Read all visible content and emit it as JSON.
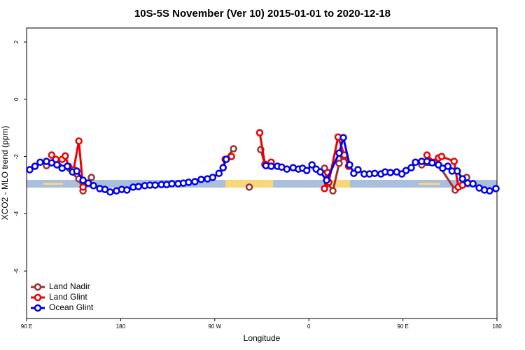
{
  "chart_data": {
    "type": "line",
    "title": "10S-5S November (Ver 10)   2015-01-01 to 2020-12-18",
    "x_label": "Longitude",
    "y_label": "XCO2 - MLO trend (ppm)",
    "xlim": [
      90,
      540
    ],
    "ylim": [
      -7.66,
      2.49
    ],
    "xticks": [
      {
        "value": 90,
        "label": "90 E"
      },
      180,
      {
        "value": 270,
        "label": "90 W"
      },
      {
        "value": 360,
        "label": "0"
      },
      {
        "value": 450,
        "label": "90 E"
      },
      {
        "value": 540,
        "label": "180"
      }
    ],
    "yticks": [
      2,
      0,
      -2,
      -4,
      -6
    ],
    "legend": "bottom-left",
    "series": [
      {
        "name": "Land Nadir",
        "color": "#993333",
        "x": [
          109,
          118,
          140,
          144,
          152,
          200,
          280,
          288,
          300,
          303,
          305,
          314,
          318,
          340,
          375,
          378,
          383,
          389,
          393,
          420,
          468,
          484,
          500,
          511
        ],
        "values": [
          -2.32,
          -2.15,
          -2.78,
          -3.2,
          -2.73,
          null,
          -2.1,
          -1.73,
          null,
          -3.07,
          null,
          -1.76,
          -2.29,
          null,
          -2.41,
          -2.93,
          -3.2,
          -2.24,
          -2.0,
          null,
          -2.29,
          -2.29,
          -3.17,
          -2.73
        ]
      },
      {
        "name": "Land Glint",
        "color": "#ee0000",
        "x": [
          114,
          118,
          124,
          127,
          130,
          135,
          140,
          144,
          148,
          200,
          278,
          280,
          286,
          300,
          313,
          318,
          324,
          340,
          375,
          378,
          379,
          388,
          394,
          398,
          420,
          473,
          480,
          484,
          487,
          499,
          503,
          507
        ],
        "values": [
          -1.95,
          -2.1,
          -2.1,
          -1.98,
          -2.34,
          -2.46,
          -1.46,
          -3.07,
          -2.93,
          null,
          -2.39,
          -2.1,
          -2.0,
          null,
          -1.17,
          -2.27,
          -2.2,
          null,
          -3.12,
          -2.56,
          -2.9,
          -1.32,
          -1.95,
          -2.34,
          null,
          -1.95,
          -2.2,
          -2.05,
          -2.0,
          -2.17,
          -3.07,
          -3.0
        ]
      },
      {
        "name": "Ocean Glint",
        "color": "#0000ee",
        "x": [
          93,
          98,
          103,
          109,
          114,
          119,
          124,
          129,
          134,
          138,
          144,
          149,
          154,
          160,
          165,
          170,
          176,
          181,
          186,
          192,
          197,
          203,
          208,
          213,
          219,
          224,
          229,
          235,
          240,
          245,
          251,
          257,
          263,
          268,
          274,
          278,
          281,
          300,
          319,
          324,
          330,
          334,
          339,
          345,
          350,
          354,
          358,
          363,
          367,
          371,
          377,
          389,
          393,
          399,
          403,
          407,
          413,
          418,
          423,
          429,
          433,
          438,
          444,
          449,
          453,
          458,
          462,
          468,
          473,
          478,
          484,
          488,
          493,
          497,
          502,
          507,
          512,
          517,
          523,
          528,
          533,
          539
        ],
        "values": [
          -2.46,
          -2.34,
          -2.2,
          -2.17,
          -2.22,
          -2.29,
          -2.41,
          -2.34,
          -2.54,
          -2.51,
          -2.83,
          -2.93,
          -3.02,
          -3.12,
          -3.15,
          -3.24,
          -3.2,
          -3.15,
          -3.17,
          -3.07,
          -3.05,
          -3.02,
          -3.0,
          -3.0,
          -2.98,
          -2.98,
          -2.95,
          -2.95,
          -2.93,
          -2.9,
          -2.88,
          -2.8,
          -2.78,
          -2.73,
          -2.59,
          -2.39,
          -2.1,
          null,
          -2.32,
          -2.34,
          -2.34,
          -2.37,
          -2.44,
          -2.39,
          -2.44,
          -2.41,
          -2.49,
          -2.29,
          -2.44,
          -2.54,
          -2.83,
          -1.88,
          -1.34,
          -2.29,
          -2.59,
          -2.46,
          -2.61,
          -2.61,
          -2.59,
          -2.61,
          -2.54,
          -2.56,
          -2.54,
          -2.61,
          -2.49,
          -2.39,
          -2.2,
          -2.17,
          -2.17,
          -2.22,
          -2.29,
          -2.41,
          -2.34,
          -2.51,
          -2.51,
          -2.78,
          -2.93,
          -2.95,
          -3.1,
          -3.17,
          -3.2,
          -3.12
        ]
      }
    ]
  }
}
